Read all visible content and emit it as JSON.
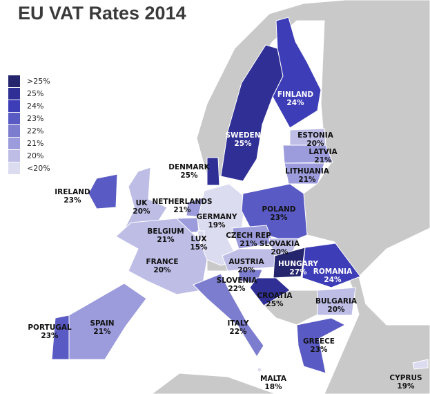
{
  "title": "EU VAT Rates 2014",
  "colors": {
    "sea": "#ffffff",
    "non_eu_land": "#c9c9c9",
    "border": "#ffffff"
  },
  "legend": [
    {
      "label": ">25%",
      "color": "#25256e"
    },
    {
      "label": "25%",
      "color": "#2f2f96"
    },
    {
      "label": "24%",
      "color": "#3d3db8"
    },
    {
      "label": "23%",
      "color": "#5a5ac4"
    },
    {
      "label": "22%",
      "color": "#7d7dcf"
    },
    {
      "label": "21%",
      "color": "#9c9cdc"
    },
    {
      "label": "20%",
      "color": "#bdbde6"
    },
    {
      "label": "<20%",
      "color": "#dcdcf0"
    }
  ],
  "countries": [
    {
      "name": "SWEDEN",
      "rate": "25%",
      "tier": 1
    },
    {
      "name": "FINLAND",
      "rate": "24%",
      "tier": 2
    },
    {
      "name": "ESTONIA",
      "rate": "20%",
      "tier": 6
    },
    {
      "name": "LATVIA",
      "rate": "21%",
      "tier": 5
    },
    {
      "name": "LITHUANIA",
      "rate": "21%",
      "tier": 5
    },
    {
      "name": "DENMARK",
      "rate": "25%",
      "tier": 1
    },
    {
      "name": "IRELAND",
      "rate": "23%",
      "tier": 3
    },
    {
      "name": "UK",
      "rate": "20%",
      "tier": 6
    },
    {
      "name": "NETHERLANDS",
      "rate": "21%",
      "tier": 5
    },
    {
      "name": "GERMANY",
      "rate": "19%",
      "tier": 7
    },
    {
      "name": "POLAND",
      "rate": "23%",
      "tier": 3
    },
    {
      "name": "BELGIUM",
      "rate": "21%",
      "tier": 5
    },
    {
      "name": "LUX",
      "rate": "15%",
      "tier": 7
    },
    {
      "name": "CZECH REP",
      "rate": "21%",
      "tier": 5
    },
    {
      "name": "SLOVAKIA",
      "rate": "20%",
      "tier": 6
    },
    {
      "name": "FRANCE",
      "rate": "20%",
      "tier": 6
    },
    {
      "name": "AUSTRIA",
      "rate": "20%",
      "tier": 6
    },
    {
      "name": "HUNGARY",
      "rate": "27%",
      "tier": 0
    },
    {
      "name": "ROMANIA",
      "rate": "24%",
      "tier": 2
    },
    {
      "name": "SLOVENIA",
      "rate": "22%",
      "tier": 4
    },
    {
      "name": "CROATIA",
      "rate": "25%",
      "tier": 1
    },
    {
      "name": "BULGARIA",
      "rate": "20%",
      "tier": 6
    },
    {
      "name": "PORTUGAL",
      "rate": "23%",
      "tier": 3
    },
    {
      "name": "SPAIN",
      "rate": "21%",
      "tier": 5
    },
    {
      "name": "ITALY",
      "rate": "22%",
      "tier": 4
    },
    {
      "name": "GREECE",
      "rate": "23%",
      "tier": 3
    },
    {
      "name": "MALTA",
      "rate": "18%",
      "tier": 7
    },
    {
      "name": "CYPRUS",
      "rate": "19%",
      "tier": 7
    }
  ]
}
